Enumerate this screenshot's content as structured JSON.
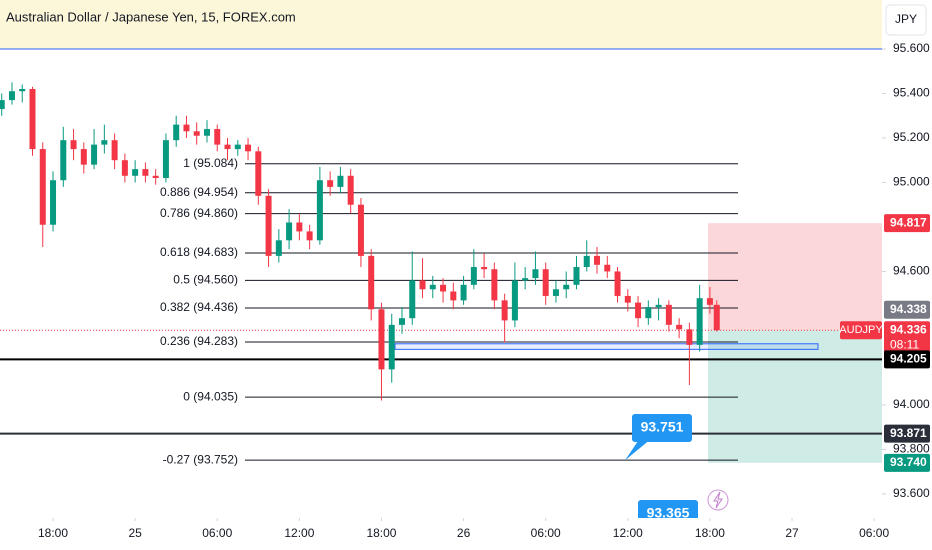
{
  "header": {
    "title": "Australian Dollar / Japanese Yen, 15, FOREX.com",
    "currency": "JPY"
  },
  "chart_data": {
    "type": "candlestick",
    "symbol": "AUDJPY",
    "countdown": "08:11",
    "up_color": "#089981",
    "down_color": "#f23645",
    "xlim": [
      -15.5,
      242.3
    ],
    "xticks": [
      {
        "value": 0,
        "label": "18:00"
      },
      {
        "value": 24,
        "label": "25"
      },
      {
        "value": 48,
        "label": "06:00"
      },
      {
        "value": 72,
        "label": "12:00"
      },
      {
        "value": 96,
        "label": "18:00"
      },
      {
        "value": 120,
        "label": "26"
      },
      {
        "value": 144,
        "label": "06:00"
      },
      {
        "value": 168,
        "label": "12:00"
      },
      {
        "value": 192,
        "label": "18:00"
      },
      {
        "value": 216,
        "label": "27"
      },
      {
        "value": 240,
        "label": "06:00"
      }
    ],
    "ylim": [
      93.492,
      95.82
    ],
    "yticks": [
      {
        "value": 95.6,
        "label": "95.600"
      },
      {
        "value": 95.4,
        "label": "95.400"
      },
      {
        "value": 95.2,
        "label": "95.200"
      },
      {
        "value": 95.0,
        "label": "95.000"
      },
      {
        "value": 94.6,
        "label": "94.600"
      },
      {
        "value": 94.0,
        "label": "94.000"
      },
      {
        "value": 93.8,
        "label": "93.800"
      },
      {
        "value": 93.6,
        "label": "93.600"
      }
    ],
    "candles": [
      [
        -15,
        95.33,
        95.4,
        95.3,
        95.37
      ],
      [
        -12,
        95.37,
        95.45,
        95.35,
        95.41
      ],
      [
        -9,
        95.41,
        95.44,
        95.36,
        95.42
      ],
      [
        -6,
        95.42,
        95.43,
        95.12,
        95.15
      ],
      [
        -3,
        95.15,
        95.18,
        94.71,
        94.81
      ],
      [
        0,
        94.81,
        95.05,
        94.78,
        95.01
      ],
      [
        3,
        95.01,
        95.25,
        94.98,
        95.19
      ],
      [
        6,
        95.19,
        95.24,
        95.1,
        95.15
      ],
      [
        9,
        95.15,
        95.18,
        95.04,
        95.08
      ],
      [
        12,
        95.08,
        95.24,
        95.06,
        95.17
      ],
      [
        15,
        95.17,
        95.26,
        95.13,
        95.19
      ],
      [
        18,
        95.19,
        95.22,
        95.06,
        95.1
      ],
      [
        21,
        95.1,
        95.13,
        95.0,
        95.03
      ],
      [
        24,
        95.03,
        95.1,
        95.0,
        95.06
      ],
      [
        27,
        95.06,
        95.09,
        95.0,
        95.03
      ],
      [
        30,
        95.03,
        95.06,
        94.99,
        95.02
      ],
      [
        33,
        95.02,
        95.22,
        95.0,
        95.19
      ],
      [
        36,
        95.19,
        95.3,
        95.16,
        95.26
      ],
      [
        39,
        95.26,
        95.3,
        95.2,
        95.23
      ],
      [
        42,
        95.23,
        95.27,
        95.17,
        95.21
      ],
      [
        45,
        95.21,
        95.28,
        95.18,
        95.24
      ],
      [
        48,
        95.24,
        95.26,
        95.14,
        95.17
      ],
      [
        51,
        95.17,
        95.2,
        95.1,
        95.15
      ],
      [
        54,
        95.15,
        95.19,
        95.12,
        95.17
      ],
      [
        57,
        95.17,
        95.2,
        95.1,
        95.14
      ],
      [
        60,
        95.14,
        95.16,
        94.9,
        94.94
      ],
      [
        63,
        94.94,
        94.97,
        94.62,
        94.67
      ],
      [
        66,
        94.67,
        94.79,
        94.64,
        94.74
      ],
      [
        69,
        94.74,
        94.88,
        94.7,
        94.82
      ],
      [
        72,
        94.82,
        94.86,
        94.74,
        94.78
      ],
      [
        75,
        94.78,
        94.81,
        94.7,
        94.74
      ],
      [
        78,
        94.74,
        95.07,
        94.72,
        95.01
      ],
      [
        81,
        95.01,
        95.05,
        94.94,
        94.98
      ],
      [
        84,
        94.98,
        95.07,
        94.95,
        95.03
      ],
      [
        87,
        95.03,
        95.06,
        94.86,
        94.9
      ],
      [
        90,
        94.9,
        94.93,
        94.62,
        94.67
      ],
      [
        93,
        94.67,
        94.7,
        94.38,
        94.43
      ],
      [
        96,
        94.43,
        94.46,
        94.02,
        94.16
      ],
      [
        99,
        94.16,
        94.41,
        94.1,
        94.36
      ],
      [
        102,
        94.36,
        94.44,
        94.32,
        94.39
      ],
      [
        105,
        94.39,
        94.69,
        94.36,
        94.56
      ],
      [
        108,
        94.56,
        94.66,
        94.48,
        94.52
      ],
      [
        111,
        94.52,
        94.58,
        94.48,
        94.54
      ],
      [
        114,
        94.54,
        94.57,
        94.46,
        94.51
      ],
      [
        117,
        94.51,
        94.55,
        94.43,
        94.47
      ],
      [
        120,
        94.47,
        94.58,
        94.45,
        94.54
      ],
      [
        123,
        94.54,
        94.7,
        94.52,
        94.62
      ],
      [
        126,
        94.62,
        94.68,
        94.57,
        94.61
      ],
      [
        129,
        94.61,
        94.64,
        94.43,
        94.47
      ],
      [
        132,
        94.47,
        94.5,
        94.28,
        94.38
      ],
      [
        135,
        94.38,
        94.64,
        94.35,
        94.56
      ],
      [
        138,
        94.56,
        94.62,
        94.52,
        94.57
      ],
      [
        141,
        94.57,
        94.69,
        94.54,
        94.61
      ],
      [
        144,
        94.61,
        94.64,
        94.45,
        94.49
      ],
      [
        147,
        94.49,
        94.56,
        94.46,
        94.52
      ],
      [
        150,
        94.52,
        94.6,
        94.48,
        94.54
      ],
      [
        153,
        94.54,
        94.67,
        94.52,
        94.62
      ],
      [
        156,
        94.62,
        94.74,
        94.6,
        94.67
      ],
      [
        159,
        94.67,
        94.71,
        94.59,
        94.63
      ],
      [
        162,
        94.63,
        94.67,
        94.57,
        94.6
      ],
      [
        165,
        94.6,
        94.62,
        94.46,
        94.49
      ],
      [
        168,
        94.49,
        94.52,
        94.42,
        94.46
      ],
      [
        171,
        94.46,
        94.49,
        94.35,
        94.39
      ],
      [
        174,
        94.39,
        94.47,
        94.36,
        94.44
      ],
      [
        177,
        94.44,
        94.48,
        94.38,
        94.45
      ],
      [
        180,
        94.45,
        94.47,
        94.33,
        94.36
      ],
      [
        183,
        94.36,
        94.39,
        94.3,
        94.34
      ],
      [
        186,
        94.34,
        94.37,
        94.09,
        94.27
      ],
      [
        189,
        94.27,
        94.54,
        94.24,
        94.48
      ],
      [
        192,
        94.48,
        94.53,
        94.41,
        94.45
      ],
      [
        194,
        94.45,
        94.47,
        94.33,
        94.336
      ]
    ],
    "fib_levels": [
      {
        "value": 95.084,
        "label": "1 (95.084)"
      },
      {
        "value": 94.954,
        "label": "0.886 (94.954)"
      },
      {
        "value": 94.86,
        "label": "0.786 (94.860)"
      },
      {
        "value": 94.683,
        "label": "0.618 (94.683)"
      },
      {
        "value": 94.56,
        "label": "0.5 (94.560)"
      },
      {
        "value": 94.436,
        "label": "0.382 (94.436)"
      },
      {
        "value": 94.283,
        "label": "0.236 (94.283)"
      },
      {
        "value": 94.035,
        "label": "0 (94.035)"
      },
      {
        "value": 93.752,
        "label": "-0.27 (93.752)"
      }
    ],
    "horizontal_lines": [
      94.205,
      93.871
    ],
    "range_box": [
      94.275,
      94.25
    ],
    "position": {
      "stop": 94.817,
      "entry": 94.336,
      "target": 93.74
    },
    "price_tags": [
      {
        "value": 94.817,
        "label": "94.817",
        "color": "#f23645"
      },
      {
        "value": 94.338,
        "label": "94.338",
        "color": "#787b86"
      },
      {
        "value": 94.336,
        "label": "94.336",
        "color": "#f23645"
      },
      {
        "value": 94.205,
        "label": "94.205",
        "color": "#000000"
      },
      {
        "value": 93.871,
        "label": "93.871",
        "color": "#2a2e39"
      },
      {
        "value": 93.74,
        "label": "93.740",
        "color": "#089981"
      }
    ],
    "callouts": [
      {
        "value": 93.751,
        "label": "93.751"
      },
      {
        "value": 93.365,
        "label": "93.365"
      }
    ]
  }
}
